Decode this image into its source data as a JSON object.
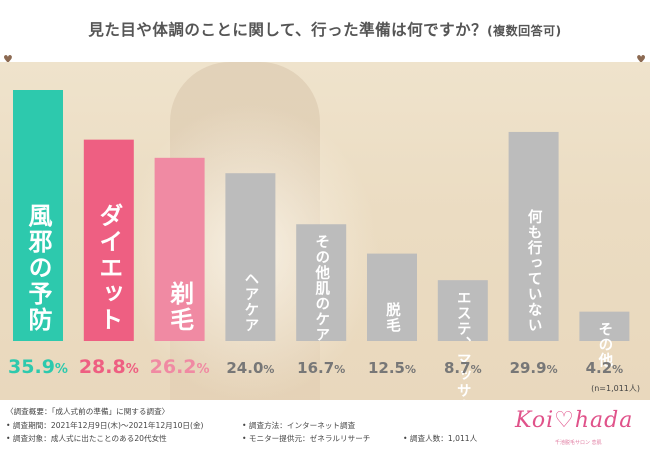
{
  "title": "見た目や体調のことに関して、行った準備は何ですか？",
  "title_suffix": "(複数回答可)",
  "chart_data": {
    "type": "bar",
    "categories": [
      "風邪の予防",
      "ダイエット",
      "剃毛",
      "ヘアケア",
      "その他肌のケア",
      "脱毛",
      "エステ、マッサージ",
      "何も行っていない",
      "その他"
    ],
    "values": [
      35.9,
      28.8,
      26.2,
      24.0,
      16.7,
      12.5,
      8.7,
      29.9,
      4.2
    ],
    "value_labels": [
      "35.9",
      "28.8",
      "26.2",
      "24.0",
      "16.7",
      "12.5",
      "8.7",
      "29.9",
      "4.2"
    ],
    "unit": "%",
    "colors": [
      "#2dc9ad",
      "#ee5f82",
      "#f08aa3",
      "#bcbcbc",
      "#bcbcbc",
      "#bcbcbc",
      "#bcbcbc",
      "#bcbcbc",
      "#bcbcbc"
    ],
    "label_colors": [
      "#2dc9ad",
      "#ee5f82",
      "#f08aa3",
      "#777777",
      "#777777",
      "#777777",
      "#777777",
      "#777777",
      "#777777"
    ],
    "ylim": [
      0,
      40
    ],
    "grid": false,
    "sample_note": "(n=1,011人)"
  },
  "footer": {
    "summary": "〈調査概要：「成人式前の準備」に関する調査〉",
    "period": "• 調査期間：2021年12月9日(木)～2021年12月10日(金)",
    "target": "• 調査対象：成人式に出たことのある20代女性",
    "method": "• 調査方法：インターネット調査",
    "provider": "• モニター提供元：ゼネラルリサーチ",
    "count": "• 調査人数：1,011人"
  },
  "logo": {
    "text": "Koi♡hada",
    "sub": "千池脱毛サロン 恋肌"
  }
}
